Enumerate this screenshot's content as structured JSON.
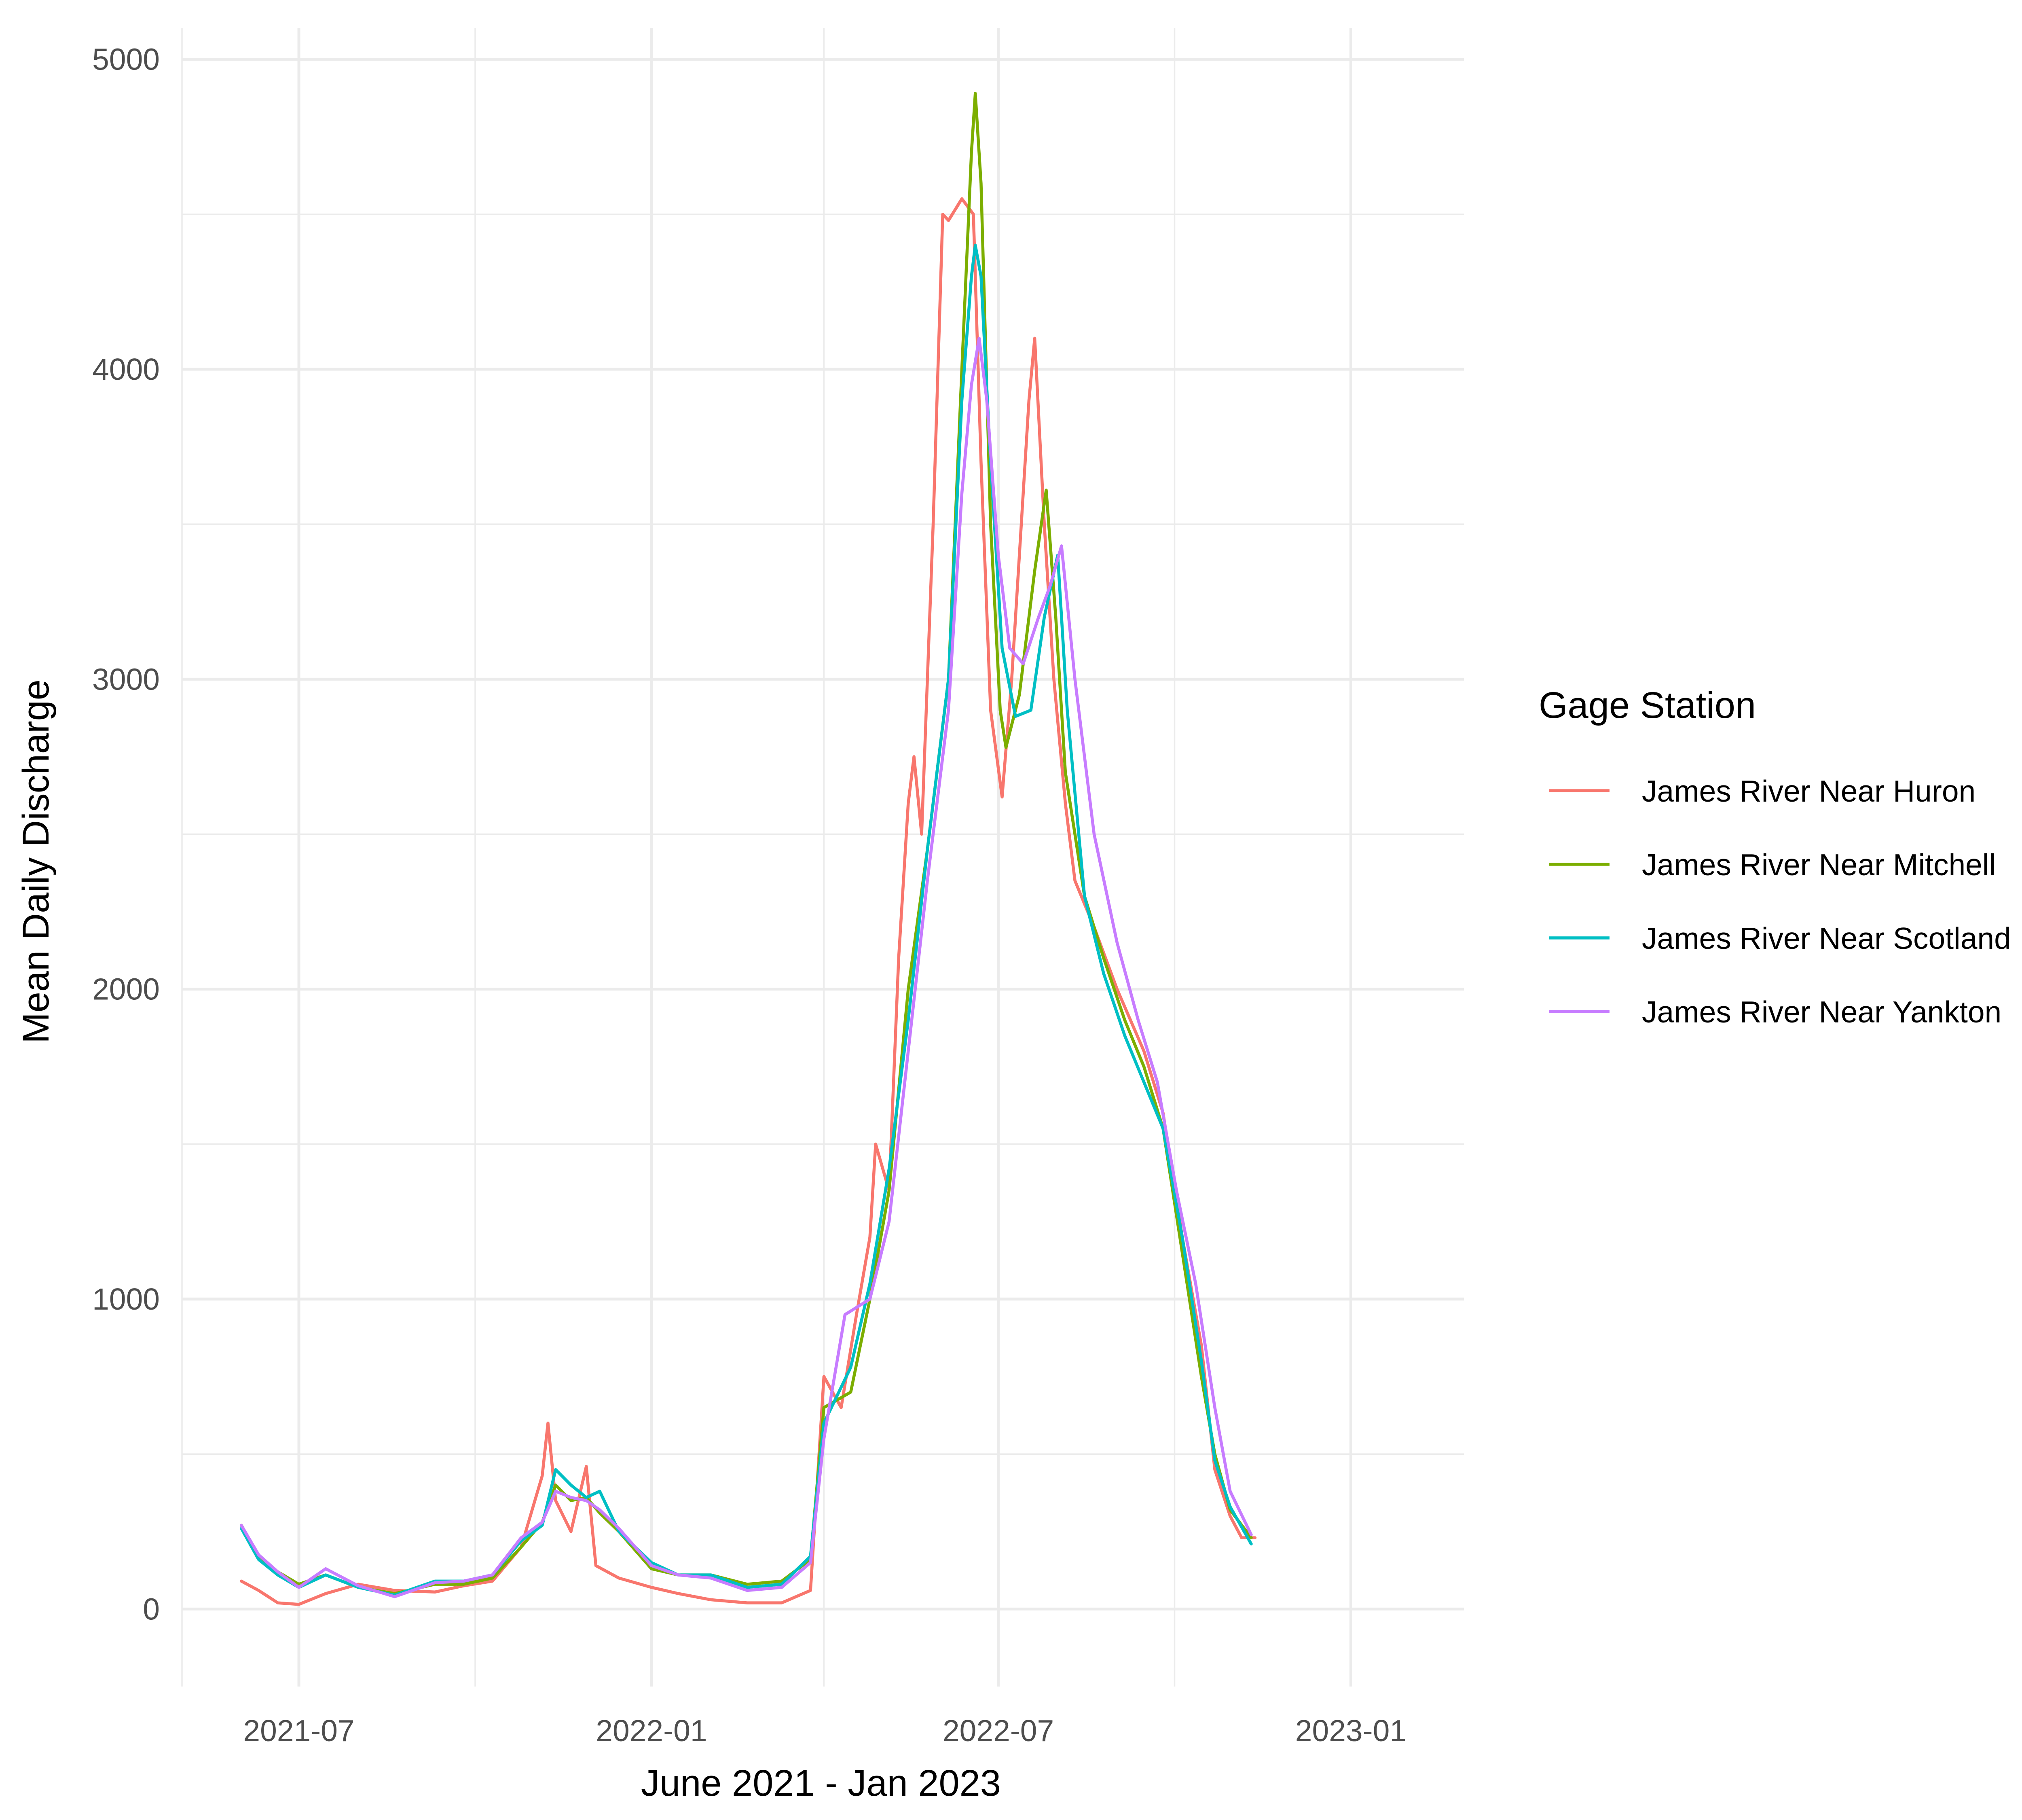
{
  "chart_data": {
    "type": "line",
    "title": "",
    "xlabel": "June 2021 - Jan 2023",
    "ylabel": "Mean Daily Discharge",
    "xlim": [
      "2021-05-01",
      "2023-03-01"
    ],
    "ylim": [
      -250,
      5100
    ],
    "x_ticks": [
      {
        "date": "2021-07-01",
        "label": "2021-07"
      },
      {
        "date": "2022-01-01",
        "label": "2022-01"
      },
      {
        "date": "2022-07-01",
        "label": "2022-07"
      },
      {
        "date": "2023-01-01",
        "label": "2023-01"
      }
    ],
    "x_minor_ticks": [
      "2021-04-01",
      "2021-10-01",
      "2022-04-01",
      "2022-10-01"
    ],
    "y_ticks": [
      0,
      1000,
      2000,
      3000,
      4000,
      5000
    ],
    "y_minor_ticks": [
      500,
      1500,
      2500,
      3500,
      4500
    ],
    "grid": true,
    "legend": {
      "title": "Gage Station",
      "position": "right"
    },
    "series": [
      {
        "name": "James River Near Huron",
        "color": "#F8766D",
        "points": [
          [
            "2021-06-01",
            90
          ],
          [
            "2021-06-10",
            60
          ],
          [
            "2021-06-20",
            20
          ],
          [
            "2021-07-01",
            15
          ],
          [
            "2021-07-15",
            50
          ],
          [
            "2021-08-01",
            80
          ],
          [
            "2021-08-20",
            60
          ],
          [
            "2021-09-10",
            55
          ],
          [
            "2021-09-25",
            75
          ],
          [
            "2021-10-10",
            90
          ],
          [
            "2021-10-25",
            200
          ],
          [
            "2021-11-05",
            430
          ],
          [
            "2021-11-08",
            600
          ],
          [
            "2021-11-12",
            350
          ],
          [
            "2021-11-20",
            250
          ],
          [
            "2021-11-28",
            460
          ],
          [
            "2021-12-03",
            140
          ],
          [
            "2021-12-15",
            100
          ],
          [
            "2022-01-01",
            70
          ],
          [
            "2022-01-15",
            50
          ],
          [
            "2022-02-01",
            30
          ],
          [
            "2022-02-20",
            20
          ],
          [
            "2022-03-10",
            20
          ],
          [
            "2022-03-25",
            60
          ],
          [
            "2022-04-01",
            750
          ],
          [
            "2022-04-10",
            650
          ],
          [
            "2022-04-18",
            950
          ],
          [
            "2022-04-25",
            1200
          ],
          [
            "2022-04-28",
            1500
          ],
          [
            "2022-05-05",
            1350
          ],
          [
            "2022-05-10",
            2100
          ],
          [
            "2022-05-15",
            2600
          ],
          [
            "2022-05-18",
            2750
          ],
          [
            "2022-05-22",
            2500
          ],
          [
            "2022-05-28",
            3500
          ],
          [
            "2022-06-02",
            4500
          ],
          [
            "2022-06-05",
            4480
          ],
          [
            "2022-06-12",
            4550
          ],
          [
            "2022-06-18",
            4500
          ],
          [
            "2022-06-22",
            3700
          ],
          [
            "2022-06-27",
            2900
          ],
          [
            "2022-07-03",
            2620
          ],
          [
            "2022-07-08",
            3000
          ],
          [
            "2022-07-12",
            3400
          ],
          [
            "2022-07-17",
            3900
          ],
          [
            "2022-07-20",
            4100
          ],
          [
            "2022-07-25",
            3500
          ],
          [
            "2022-07-30",
            3000
          ],
          [
            "2022-08-05",
            2600
          ],
          [
            "2022-08-10",
            2350
          ],
          [
            "2022-08-20",
            2200
          ],
          [
            "2022-09-01",
            2000
          ],
          [
            "2022-09-15",
            1800
          ],
          [
            "2022-09-25",
            1600
          ],
          [
            "2022-10-05",
            1200
          ],
          [
            "2022-10-15",
            850
          ],
          [
            "2022-10-22",
            450
          ],
          [
            "2022-10-30",
            300
          ],
          [
            "2022-11-05",
            230
          ],
          [
            "2022-11-12",
            230
          ]
        ]
      },
      {
        "name": "James River Near Mitchell",
        "color": "#7CAE00",
        "points": [
          [
            "2021-06-01",
            270
          ],
          [
            "2021-06-10",
            170
          ],
          [
            "2021-06-20",
            120
          ],
          [
            "2021-07-01",
            80
          ],
          [
            "2021-07-15",
            110
          ],
          [
            "2021-08-01",
            70
          ],
          [
            "2021-08-20",
            50
          ],
          [
            "2021-09-10",
            80
          ],
          [
            "2021-09-25",
            80
          ],
          [
            "2021-10-10",
            100
          ],
          [
            "2021-10-25",
            200
          ],
          [
            "2021-11-05",
            280
          ],
          [
            "2021-11-12",
            400
          ],
          [
            "2021-11-20",
            350
          ],
          [
            "2021-11-28",
            360
          ],
          [
            "2021-12-05",
            310
          ],
          [
            "2021-12-15",
            250
          ],
          [
            "2022-01-01",
            130
          ],
          [
            "2022-01-15",
            110
          ],
          [
            "2022-02-01",
            110
          ],
          [
            "2022-02-20",
            80
          ],
          [
            "2022-03-10",
            90
          ],
          [
            "2022-03-25",
            160
          ],
          [
            "2022-04-01",
            650
          ],
          [
            "2022-04-15",
            700
          ],
          [
            "2022-04-25",
            1000
          ],
          [
            "2022-05-05",
            1350
          ],
          [
            "2022-05-15",
            2000
          ],
          [
            "2022-05-25",
            2450
          ],
          [
            "2022-06-05",
            3000
          ],
          [
            "2022-06-12",
            4000
          ],
          [
            "2022-06-17",
            4700
          ],
          [
            "2022-06-19",
            4890
          ],
          [
            "2022-06-22",
            4600
          ],
          [
            "2022-06-27",
            3500
          ],
          [
            "2022-07-02",
            2900
          ],
          [
            "2022-07-05",
            2780
          ],
          [
            "2022-07-12",
            2950
          ],
          [
            "2022-07-20",
            3350
          ],
          [
            "2022-07-26",
            3610
          ],
          [
            "2022-07-31",
            3200
          ],
          [
            "2022-08-05",
            2700
          ],
          [
            "2022-08-15",
            2300
          ],
          [
            "2022-08-25",
            2100
          ],
          [
            "2022-09-05",
            1900
          ],
          [
            "2022-09-15",
            1750
          ],
          [
            "2022-09-25",
            1550
          ],
          [
            "2022-10-05",
            1150
          ],
          [
            "2022-10-15",
            750
          ],
          [
            "2022-10-22",
            500
          ],
          [
            "2022-10-30",
            320
          ],
          [
            "2022-11-10",
            230
          ]
        ]
      },
      {
        "name": "James River Near Scotland",
        "color": "#00BFC4",
        "points": [
          [
            "2021-06-01",
            260
          ],
          [
            "2021-06-10",
            160
          ],
          [
            "2021-06-20",
            110
          ],
          [
            "2021-07-01",
            70
          ],
          [
            "2021-07-15",
            110
          ],
          [
            "2021-08-01",
            70
          ],
          [
            "2021-08-20",
            45
          ],
          [
            "2021-09-10",
            90
          ],
          [
            "2021-09-25",
            90
          ],
          [
            "2021-10-10",
            110
          ],
          [
            "2021-10-25",
            220
          ],
          [
            "2021-11-05",
            270
          ],
          [
            "2021-11-12",
            450
          ],
          [
            "2021-11-20",
            400
          ],
          [
            "2021-11-28",
            360
          ],
          [
            "2021-12-05",
            380
          ],
          [
            "2021-12-15",
            250
          ],
          [
            "2022-01-01",
            150
          ],
          [
            "2022-01-15",
            110
          ],
          [
            "2022-02-01",
            110
          ],
          [
            "2022-02-20",
            70
          ],
          [
            "2022-03-10",
            80
          ],
          [
            "2022-03-25",
            170
          ],
          [
            "2022-04-01",
            600
          ],
          [
            "2022-04-15",
            780
          ],
          [
            "2022-04-25",
            1050
          ],
          [
            "2022-05-05",
            1420
          ],
          [
            "2022-05-15",
            1900
          ],
          [
            "2022-05-25",
            2450
          ],
          [
            "2022-06-05",
            3000
          ],
          [
            "2022-06-12",
            3900
          ],
          [
            "2022-06-17",
            4300
          ],
          [
            "2022-06-19",
            4400
          ],
          [
            "2022-06-22",
            4300
          ],
          [
            "2022-06-27",
            3700
          ],
          [
            "2022-07-03",
            3100
          ],
          [
            "2022-07-10",
            2880
          ],
          [
            "2022-07-18",
            2900
          ],
          [
            "2022-07-25",
            3200
          ],
          [
            "2022-08-01",
            3400
          ],
          [
            "2022-08-06",
            2900
          ],
          [
            "2022-08-15",
            2300
          ],
          [
            "2022-08-25",
            2050
          ],
          [
            "2022-09-05",
            1850
          ],
          [
            "2022-09-15",
            1700
          ],
          [
            "2022-09-25",
            1550
          ],
          [
            "2022-10-05",
            1200
          ],
          [
            "2022-10-15",
            800
          ],
          [
            "2022-10-22",
            480
          ],
          [
            "2022-10-30",
            330
          ],
          [
            "2022-11-10",
            210
          ]
        ]
      },
      {
        "name": "James River Near Yankton",
        "color": "#C77CFF",
        "points": [
          [
            "2021-06-01",
            270
          ],
          [
            "2021-06-10",
            175
          ],
          [
            "2021-06-20",
            120
          ],
          [
            "2021-07-01",
            70
          ],
          [
            "2021-07-15",
            130
          ],
          [
            "2021-08-01",
            75
          ],
          [
            "2021-08-20",
            40
          ],
          [
            "2021-09-10",
            85
          ],
          [
            "2021-09-25",
            90
          ],
          [
            "2021-10-10",
            110
          ],
          [
            "2021-10-25",
            230
          ],
          [
            "2021-11-05",
            280
          ],
          [
            "2021-11-12",
            380
          ],
          [
            "2021-11-20",
            360
          ],
          [
            "2021-11-28",
            350
          ],
          [
            "2021-12-05",
            320
          ],
          [
            "2021-12-15",
            260
          ],
          [
            "2022-01-01",
            140
          ],
          [
            "2022-01-15",
            110
          ],
          [
            "2022-02-01",
            100
          ],
          [
            "2022-02-20",
            60
          ],
          [
            "2022-03-10",
            70
          ],
          [
            "2022-03-25",
            150
          ],
          [
            "2022-04-01",
            550
          ],
          [
            "2022-04-12",
            950
          ],
          [
            "2022-04-25",
            1000
          ],
          [
            "2022-05-05",
            1250
          ],
          [
            "2022-05-15",
            1800
          ],
          [
            "2022-05-25",
            2350
          ],
          [
            "2022-06-05",
            2900
          ],
          [
            "2022-06-12",
            3600
          ],
          [
            "2022-06-17",
            3950
          ],
          [
            "2022-06-21",
            4100
          ],
          [
            "2022-06-25",
            3900
          ],
          [
            "2022-07-01",
            3400
          ],
          [
            "2022-07-07",
            3100
          ],
          [
            "2022-07-14",
            3050
          ],
          [
            "2022-07-22",
            3200
          ],
          [
            "2022-07-28",
            3300
          ],
          [
            "2022-08-03",
            3430
          ],
          [
            "2022-08-10",
            3000
          ],
          [
            "2022-08-20",
            2500
          ],
          [
            "2022-09-01",
            2150
          ],
          [
            "2022-09-12",
            1900
          ],
          [
            "2022-09-22",
            1700
          ],
          [
            "2022-10-02",
            1350
          ],
          [
            "2022-10-12",
            1050
          ],
          [
            "2022-10-22",
            650
          ],
          [
            "2022-10-30",
            380
          ],
          [
            "2022-11-10",
            240
          ]
        ]
      }
    ]
  }
}
